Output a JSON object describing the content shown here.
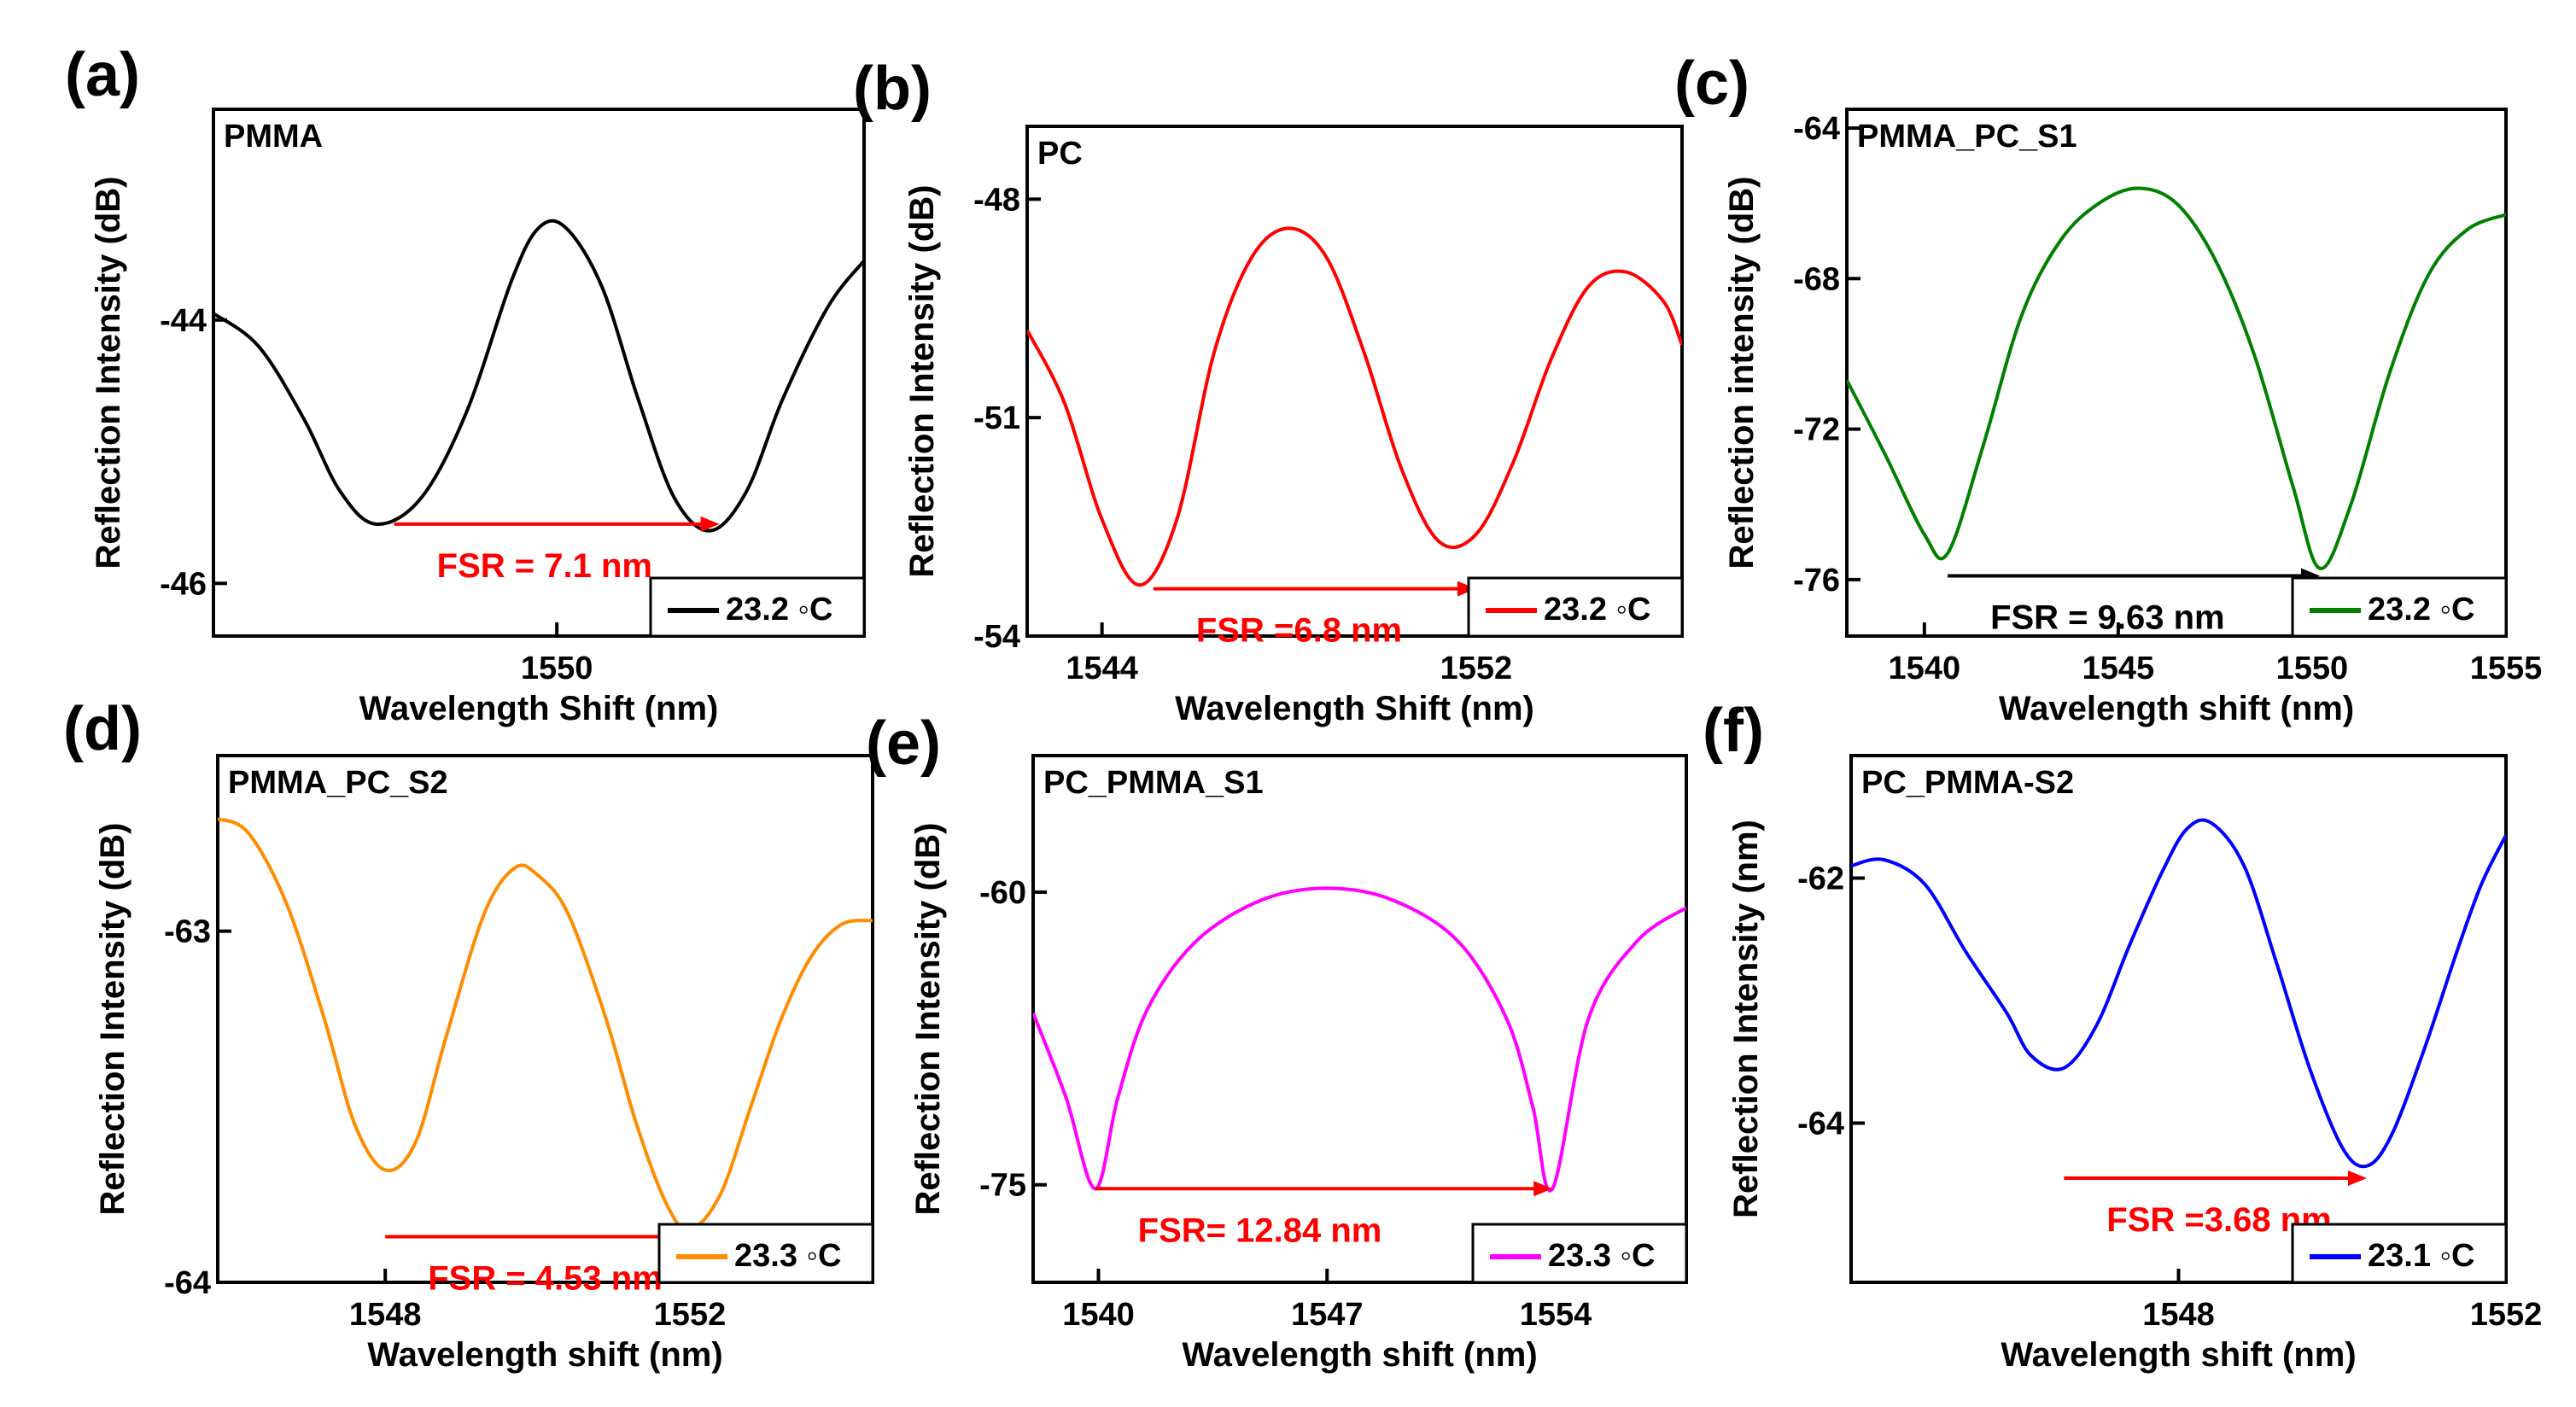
{
  "chart_data": [
    {
      "type": "line",
      "panel_label": "(a)",
      "title": "PMMA",
      "xlabel": "Wavelength Shift (nm)",
      "ylabel": "Reflection Intensity (dB)",
      "xlim": [
        1546.2,
        1553.4
      ],
      "ylim": [
        -46.4,
        -42.4
      ],
      "xticks": [
        1550
      ],
      "xtick_labels": [
        "1550"
      ],
      "yticks": [
        -44,
        -46
      ],
      "ytick_labels": [
        "-44",
        "-46"
      ],
      "x": [
        1546.2,
        1546.7,
        1547.2,
        1547.6,
        1548.0,
        1548.5,
        1549.0,
        1549.5,
        1549.8,
        1550.1,
        1550.5,
        1550.9,
        1551.3,
        1551.7,
        1552.1,
        1552.5,
        1553.0,
        1553.4
      ],
      "y": [
        -43.95,
        -44.2,
        -44.75,
        -45.3,
        -45.55,
        -45.35,
        -44.7,
        -43.7,
        -43.3,
        -43.3,
        -43.75,
        -44.6,
        -45.35,
        -45.6,
        -45.3,
        -44.6,
        -43.9,
        -43.55
      ],
      "series": [
        {
          "name": "23.2 ◦C",
          "color": "#000000"
        }
      ],
      "legend": [
        "23.2 ◦C"
      ],
      "legend_position": "bottom-right",
      "annotation": {
        "text": "FSR = 7.1 nm",
        "color": "#ff0000",
        "x_start": 1548.2,
        "x_end": 1551.8,
        "y": -45.55
      }
    },
    {
      "type": "line",
      "panel_label": "(b)",
      "title": "PC",
      "xlabel": "Wavelength  Shift (nm)",
      "ylabel": "Reflection Intensity (dB)",
      "xlim": [
        1542.4,
        1556.4
      ],
      "ylim": [
        -54,
        -47
      ],
      "xticks": [
        1544,
        1552
      ],
      "xtick_labels": [
        "1544",
        "1552"
      ],
      "yticks": [
        -48,
        -51,
        -54
      ],
      "ytick_labels": [
        "-48",
        "-51",
        "-54"
      ],
      "x": [
        1542.4,
        1543.2,
        1544.0,
        1544.8,
        1545.6,
        1546.4,
        1547.2,
        1548.0,
        1548.8,
        1549.6,
        1550.4,
        1551.2,
        1552.0,
        1552.8,
        1553.6,
        1554.4,
        1555.2,
        1556.0,
        1556.4
      ],
      "y": [
        -49.8,
        -50.8,
        -52.4,
        -53.3,
        -52.4,
        -50.1,
        -48.8,
        -48.4,
        -48.8,
        -50.1,
        -51.7,
        -52.7,
        -52.6,
        -51.6,
        -50.2,
        -49.2,
        -49.0,
        -49.4,
        -50.0
      ],
      "series": [
        {
          "name": "23.2 ◦C",
          "color": "#ff0000"
        }
      ],
      "legend": [
        "23.2 ◦C"
      ],
      "legend_position": "bottom-right",
      "annotation": {
        "text": "FSR =6.8 nm",
        "color": "#ff0000",
        "x_start": 1545.1,
        "x_end": 1552.0,
        "y": -53.35
      }
    },
    {
      "type": "line",
      "panel_label": "(c)",
      "title": "PMMA_PC_S1",
      "xlabel": "Wavelength shift (nm)",
      "ylabel": "Reflection intensity (dB)",
      "xlim": [
        1538,
        1555
      ],
      "ylim": [
        -77.5,
        -63.5
      ],
      "xticks": [
        1540,
        1545,
        1550,
        1555
      ],
      "xtick_labels": [
        "1540",
        "1545",
        "1550",
        "1555"
      ],
      "yticks": [
        -64,
        -68,
        -72,
        -76
      ],
      "ytick_labels": [
        "-64",
        "-68",
        "-72",
        "-76"
      ],
      "x": [
        1538.0,
        1539.0,
        1540.0,
        1540.6,
        1541.5,
        1542.5,
        1543.5,
        1544.5,
        1545.5,
        1546.5,
        1547.5,
        1548.5,
        1549.5,
        1550.2,
        1551.0,
        1552.0,
        1553.0,
        1554.0,
        1555.0
      ],
      "y": [
        -70.7,
        -72.7,
        -74.8,
        -75.3,
        -72.5,
        -69.0,
        -67.0,
        -66.0,
        -65.6,
        -66.0,
        -67.5,
        -70.0,
        -73.5,
        -75.7,
        -74.0,
        -70.5,
        -67.9,
        -66.7,
        -66.3
      ],
      "series": [
        {
          "name": "23.2 ◦C",
          "color": "#008000"
        }
      ],
      "legend": [
        "23.2 ◦C"
      ],
      "legend_position": "bottom-right",
      "annotation": {
        "text": "FSR = 9.63 nm",
        "color": "#000000",
        "x_start": 1540.6,
        "x_end": 1550.2,
        "y": -75.9
      }
    },
    {
      "type": "line",
      "panel_label": "(d)",
      "title": "PMMA_PC_S2",
      "xlabel": "Wavelength shift (nm)",
      "ylabel": "Reflection Intensity (dB)",
      "xlim": [
        1545.8,
        1554.4
      ],
      "ylim": [
        -64,
        -62.5
      ],
      "xticks": [
        1548,
        1552
      ],
      "xtick_labels": [
        "1548",
        "1552"
      ],
      "yticks": [
        -63,
        -64
      ],
      "ytick_labels": [
        "-63",
        "-64"
      ],
      "x": [
        1545.8,
        1546.2,
        1546.7,
        1547.2,
        1547.6,
        1548.0,
        1548.4,
        1548.8,
        1549.3,
        1549.7,
        1550.0,
        1550.4,
        1550.9,
        1551.3,
        1551.7,
        1552.0,
        1552.4,
        1552.8,
        1553.2,
        1553.6,
        1554.0,
        1554.4
      ],
      "y": [
        -62.68,
        -62.72,
        -62.92,
        -63.25,
        -63.55,
        -63.68,
        -63.6,
        -63.3,
        -62.95,
        -62.82,
        -62.84,
        -62.95,
        -63.25,
        -63.55,
        -63.78,
        -63.85,
        -63.75,
        -63.5,
        -63.25,
        -63.07,
        -62.98,
        -62.97
      ],
      "series": [
        {
          "name": "23.3 ◦C",
          "color": "#ff8c00"
        }
      ],
      "legend": [
        "23.3 ◦C"
      ],
      "legend_position": "bottom-right",
      "annotation": {
        "text": "FSR = 4.53 nm",
        "color": "#ff0000",
        "x_start": 1548.0,
        "x_end": 1552.2,
        "y": -63.87
      }
    },
    {
      "type": "line",
      "panel_label": "(e)",
      "title": "PC_PMMA_S1",
      "xlabel": "Wavelength shift (nm)",
      "ylabel": "Reflection Intensity (dB)",
      "xlim": [
        1538,
        1558
      ],
      "ylim": [
        -80,
        -53
      ],
      "xticks": [
        1540,
        1547,
        1554
      ],
      "xtick_labels": [
        "1540",
        "1547",
        "1554"
      ],
      "yticks": [
        -60,
        -75
      ],
      "ytick_labels": [
        "-60",
        "-75"
      ],
      "x": [
        1538.0,
        1539.0,
        1539.9,
        1540.6,
        1541.5,
        1543.0,
        1545.0,
        1547.0,
        1549.0,
        1551.0,
        1552.5,
        1553.3,
        1553.9,
        1555.0,
        1556.5,
        1558.0
      ],
      "y": [
        -66.2,
        -70.5,
        -75.2,
        -70.5,
        -66.0,
        -62.5,
        -60.4,
        -59.8,
        -60.4,
        -62.5,
        -66.5,
        -71.0,
        -75.2,
        -66.5,
        -62.5,
        -60.8
      ],
      "series": [
        {
          "name": "23.3 ◦C",
          "color": "#ff00ff"
        }
      ],
      "legend": [
        "23.3 ◦C"
      ],
      "legend_position": "bottom-right",
      "annotation": {
        "text": "FSR= 12.84 nm",
        "color": "#ff0000",
        "x_start": 1539.9,
        "x_end": 1553.9,
        "y": -75.2
      }
    },
    {
      "type": "line",
      "panel_label": "(f)",
      "title": "PC_PMMA-S2",
      "xlabel": "Wavelength shift (nm)",
      "ylabel": "Reflection Intensity (nm)",
      "xlim": [
        1544.0,
        1552.0
      ],
      "ylim": [
        -65.3,
        -61.0
      ],
      "xticks": [
        1548,
        1552
      ],
      "xtick_labels": [
        "1548",
        "1552"
      ],
      "yticks": [
        -62,
        -64
      ],
      "ytick_labels": [
        "-62",
        "-64"
      ],
      "x": [
        1544.0,
        1544.4,
        1544.9,
        1545.4,
        1545.9,
        1546.2,
        1546.6,
        1547.0,
        1547.4,
        1547.8,
        1548.1,
        1548.4,
        1548.8,
        1549.2,
        1549.6,
        1550.0,
        1550.3,
        1550.6,
        1551.0,
        1551.4,
        1551.7,
        1552.0
      ],
      "y": [
        -61.9,
        -61.85,
        -62.05,
        -62.6,
        -63.1,
        -63.45,
        -63.55,
        -63.2,
        -62.55,
        -61.95,
        -61.6,
        -61.55,
        -61.9,
        -62.7,
        -63.55,
        -64.2,
        -64.35,
        -64.1,
        -63.4,
        -62.6,
        -62.05,
        -61.65
      ],
      "series": [
        {
          "name": "23.1 ◦C",
          "color": "#0000ff"
        }
      ],
      "legend": [
        "23.1 ◦C"
      ],
      "legend_position": "bottom-right",
      "annotation": {
        "text": "FSR =3.68 nm",
        "color": "#ff0000",
        "x_start": 1546.6,
        "x_end": 1550.3,
        "y": -64.45
      }
    }
  ]
}
